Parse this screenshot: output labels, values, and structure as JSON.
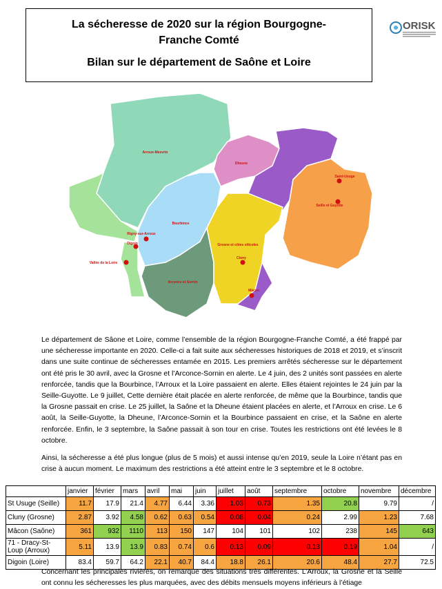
{
  "header": {
    "title": "La sécheresse de 2020 sur la région Bourgogne-Franche Comté",
    "subtitle": "Bilan sur le département de Saône et Loire",
    "logo": "ORISK"
  },
  "map": {
    "labels": [
      "Arroux-Mesvrin",
      "Dheune",
      "Saint-Usuge",
      "Seille et Guyotte",
      "Bourbince",
      "Rigny-sur-Arroux",
      "Digoin",
      "Vallée de la Loire",
      "Grosne et côtes viticoles",
      "Cluny",
      "Arconce et Sornin",
      "Mâcon"
    ]
  },
  "paragraphs": [
    "Le département de Sâone et Loire, comme l’ensemble de la région Bourgogne-Franche Comté, a été frappé par une sécheresse importante en 2020. Celle-ci a fait suite aux sécheresses historiques de 2018 et 2019, et s’inscrit dans une suite continue de sécheresses entamée en 2015. Les premiers arrêtés sécheresse sur le département ont été pris le 30 avril, avec la Grosne et l’Arconce-Sornin en alerte. Le 4 juin, des 2 unités sont passées en alerte renforcée, tandis que la Bourbince, l’Arroux et la Loire passaient en alerte. Elles étaient rejointes le 24 juin par la Seille-Guyotte. Le 9 juillet, Cette dernière était placée en alerte renforcée, de même que la Bourbince, tandis que la Grosne passait en crise. Le 25 juillet, la Saône et la Dheune étaient placées en alerte, et l’Arroux en crise. Le 6 août, la Seille-Guyotte, la Dheune, l’Arconce-Sornin et la Bourbince passaient en crise, et la Saône en alerte renforcée. Enfin, le 3 septembre, la Saône passait à son tour en crise. Toutes les restrictions ont été levées le 8 octobre.",
    "Ainsi, la sécheresse a été plus longue (plus de 5 mois) et aussi intense qu’en 2019, seule la Loire n’étant pas en crise à aucun moment. Le maximum des restrictions a été atteint entre le 3 septembre et le 8 octobre."
  ],
  "table": {
    "header": [
      "janvier",
      "février",
      "mars",
      "avril",
      "mai",
      "juin",
      "juillet",
      "août",
      "septembre",
      "octobre",
      "novembre",
      "décembre"
    ],
    "rows": [
      {
        "label": "St Usuge (Seille)",
        "values": [
          11.7,
          17.9,
          21.4,
          4.77,
          6.44,
          3.36,
          1.03,
          0.73,
          1.35,
          20.8,
          9.79,
          "/"
        ],
        "colors": [
          "#f7a541",
          null,
          null,
          "#f7a541",
          null,
          null,
          "#ff0000",
          "#ff0000",
          "#f7a541",
          "#92d050",
          null,
          null
        ]
      },
      {
        "label": "Cluny (Grosne)",
        "values": [
          2.87,
          3.92,
          4.58,
          0.62,
          0.63,
          0.54,
          0.08,
          0.04,
          0.24,
          2.99,
          1.23,
          7.68
        ],
        "colors": [
          "#f7a541",
          null,
          "#92d050",
          "#f7a541",
          "#f7a541",
          "#f7a541",
          "#ff0000",
          "#ff0000",
          "#f7a541",
          null,
          "#f7a541",
          null
        ]
      },
      {
        "label": "Mâcon (Saône)",
        "values": [
          361,
          932,
          1110,
          113,
          150,
          147,
          104,
          101,
          102,
          238,
          145,
          643
        ],
        "colors": [
          "#f7a541",
          "#92d050",
          "#92d050",
          "#f7a541",
          "#f7a541",
          null,
          null,
          null,
          null,
          null,
          "#f7a541",
          "#92d050"
        ]
      },
      {
        "label": "71 - Dracy-St-Loup (Arroux)",
        "values": [
          5.11,
          13.9,
          13.9,
          0.83,
          0.74,
          0.6,
          0.13,
          0.09,
          0.13,
          0.19,
          1.04,
          "/"
        ],
        "colors": [
          "#f7a541",
          null,
          "#92d050",
          "#f7a541",
          "#f7a541",
          "#f7a541",
          "#ff0000",
          "#ff0000",
          "#ff0000",
          "#ff0000",
          "#f7a541",
          null
        ]
      },
      {
        "label": "Digoin (Loire)",
        "values": [
          83.4,
          59.7,
          64.2,
          22.1,
          40.7,
          84.4,
          18.8,
          26.1,
          20.6,
          48.4,
          27.7,
          72.5
        ],
        "colors": [
          null,
          null,
          null,
          "#f7a541",
          "#f7a541",
          null,
          "#f7a541",
          "#f7a541",
          "#f7a541",
          "#f7a541",
          "#f7a541",
          null
        ]
      }
    ]
  },
  "footer_text": "Concernant les principales rivières, on remarque des situations très différentes. L’Arroux, la Grosne et la Seille ont connu les sécheresses les plus marquées, avec des débits mensuels moyens inférieurs à l’étiage"
}
